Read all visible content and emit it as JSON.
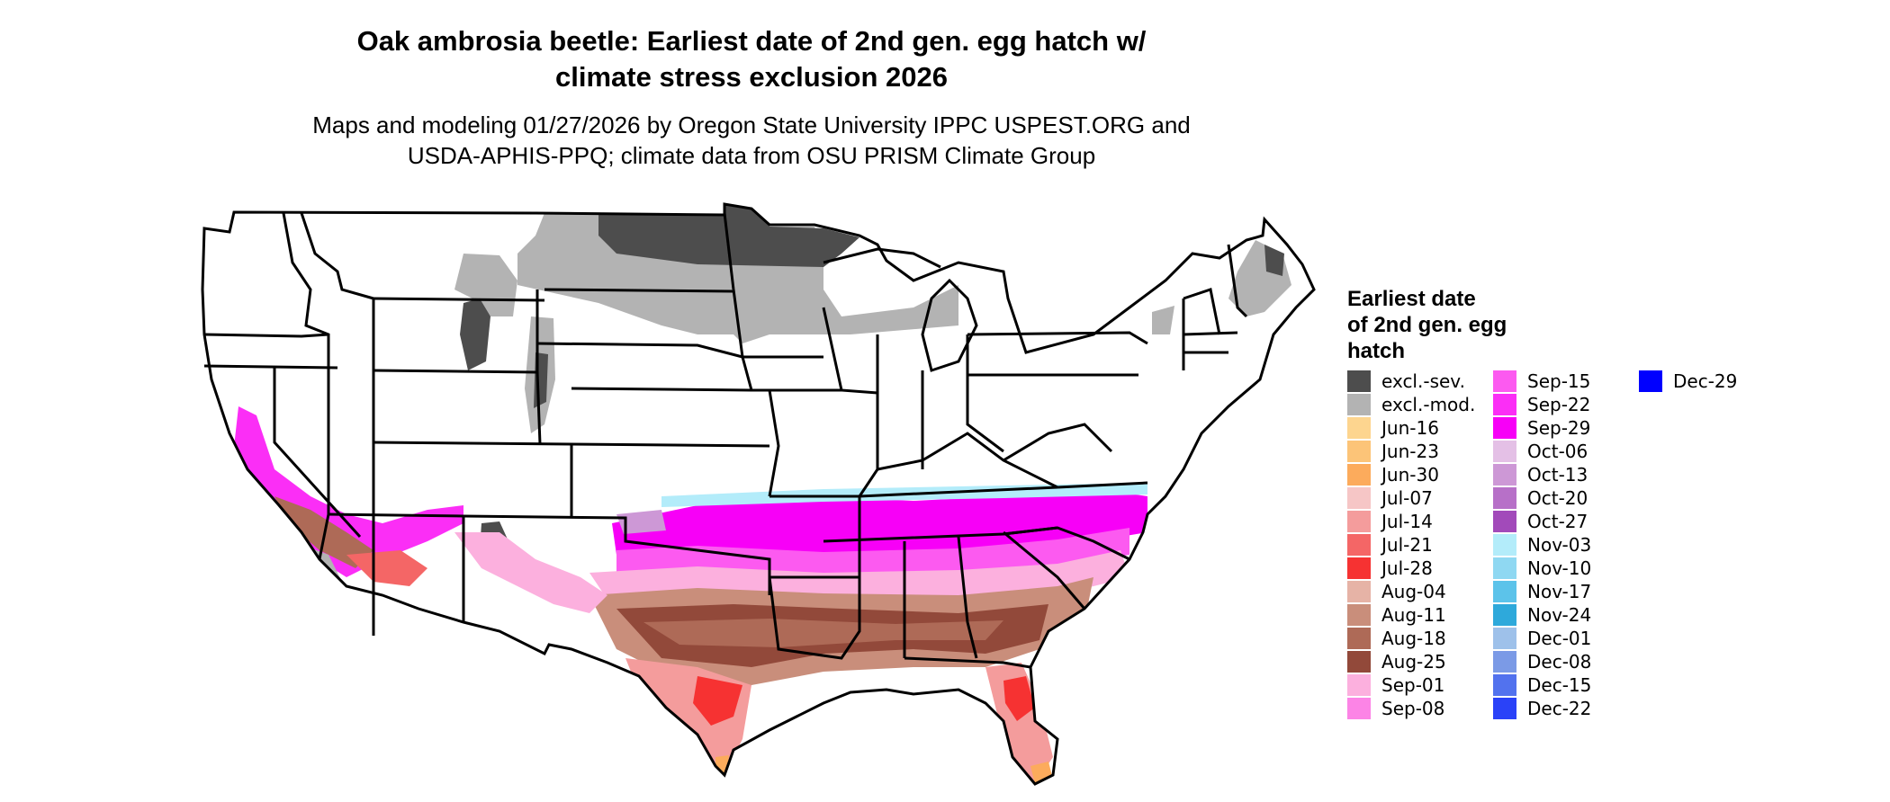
{
  "title_line1": "Oak ambrosia beetle: Earliest date of 2nd gen. egg hatch w/",
  "title_line2": "climate stress exclusion 2026",
  "subtitle_line1": "Maps and modeling 01/27/2026 by Oregon State University IPPC USPEST.ORG and",
  "subtitle_line2": "USDA-APHIS-PPQ; climate data from OSU PRISM Climate Group",
  "legend": {
    "title_lines": [
      "Earliest date",
      "of 2nd gen. egg",
      "hatch"
    ],
    "items": [
      {
        "label": "excl.-sev.",
        "color": "#4d4d4d"
      },
      {
        "label": "excl.-mod.",
        "color": "#b3b3b3"
      },
      {
        "label": "Jun-16",
        "color": "#fdd58f"
      },
      {
        "label": "Jun-23",
        "color": "#fcc478"
      },
      {
        "label": "Jun-30",
        "color": "#fcab5c"
      },
      {
        "label": "Jul-07",
        "color": "#f6c6c6"
      },
      {
        "label": "Jul-14",
        "color": "#f49c9c"
      },
      {
        "label": "Jul-21",
        "color": "#f46666"
      },
      {
        "label": "Jul-28",
        "color": "#f63232"
      },
      {
        "label": "Aug-04",
        "color": "#e6b3a6"
      },
      {
        "label": "Aug-11",
        "color": "#c98e7b"
      },
      {
        "label": "Aug-18",
        "color": "#ae6a57"
      },
      {
        "label": "Aug-25",
        "color": "#92493a"
      },
      {
        "label": "Sep-01",
        "color": "#fcb0de"
      },
      {
        "label": "Sep-08",
        "color": "#fc84e6"
      },
      {
        "label": "Sep-15",
        "color": "#fc5af0"
      },
      {
        "label": "Sep-22",
        "color": "#fb2ef6"
      },
      {
        "label": "Sep-29",
        "color": "#f700f7"
      },
      {
        "label": "Oct-06",
        "color": "#e4c0e6"
      },
      {
        "label": "Oct-13",
        "color": "#cd98d6"
      },
      {
        "label": "Oct-20",
        "color": "#b770c8"
      },
      {
        "label": "Oct-27",
        "color": "#a24aba"
      },
      {
        "label": "Nov-03",
        "color": "#b3ecfa"
      },
      {
        "label": "Nov-10",
        "color": "#8fd8f2"
      },
      {
        "label": "Nov-17",
        "color": "#5cc3ea"
      },
      {
        "label": "Nov-24",
        "color": "#2ea9db"
      },
      {
        "label": "Dec-01",
        "color": "#9ec1ea"
      },
      {
        "label": "Dec-08",
        "color": "#7b9ae6"
      },
      {
        "label": "Dec-15",
        "color": "#5272ee"
      },
      {
        "label": "Dec-22",
        "color": "#2a42f8"
      },
      {
        "label": "Dec-29",
        "color": "#0000ff"
      }
    ]
  }
}
